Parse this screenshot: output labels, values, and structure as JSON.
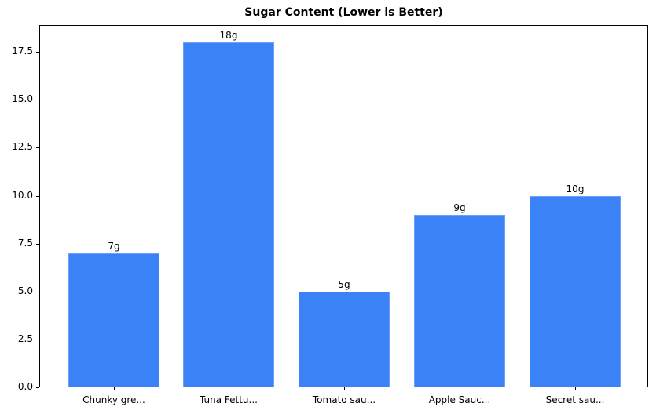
{
  "chart_data": {
    "type": "bar",
    "title": "Sugar Content (Lower is Better)",
    "categories": [
      "Chunky gre...",
      "Tuna Fettu...",
      "Tomato sau...",
      "Apple Sauc...",
      "Secret sau..."
    ],
    "values": [
      7,
      18,
      5,
      9,
      10
    ],
    "data_labels": [
      "7g",
      "18g",
      "5g",
      "9g",
      "10g"
    ],
    "xlabel": "",
    "ylabel": "",
    "ylim": [
      0,
      18.9
    ],
    "yticks": [
      "0.0",
      "2.5",
      "5.0",
      "7.5",
      "10.0",
      "12.5",
      "15.0",
      "17.5"
    ],
    "ytick_values": [
      0,
      2.5,
      5,
      7.5,
      10,
      12.5,
      15,
      17.5
    ],
    "grid": false,
    "legend": null,
    "bar_color": "#3b82f6"
  }
}
